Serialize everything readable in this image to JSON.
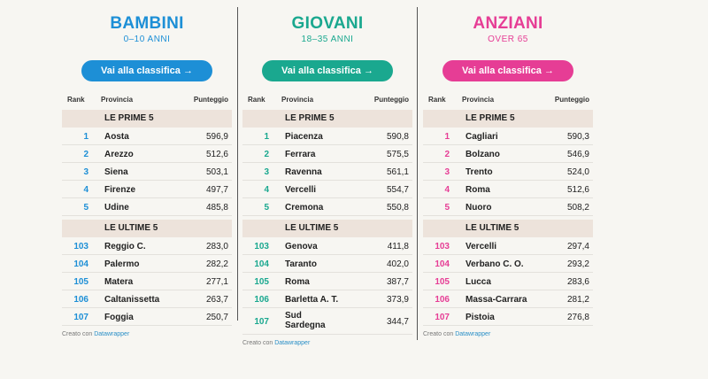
{
  "columns_header": {
    "rank": "Rank",
    "province": "Provincia",
    "score": "Punteggio"
  },
  "credit": {
    "prefix": "Creato con",
    "link": "Datawrapper"
  },
  "panels": [
    {
      "title": "BAMBINI",
      "subtitle": "0–10 ANNI",
      "accent": "#1d8fd6",
      "button_label": "Vai alla classifica →",
      "top_label": "LE PRIME 5",
      "bottom_label": "LE ULTIME 5",
      "top": [
        {
          "rank": "1",
          "province": "Aosta",
          "score": "596,9"
        },
        {
          "rank": "2",
          "province": "Arezzo",
          "score": "512,6"
        },
        {
          "rank": "3",
          "province": "Siena",
          "score": "503,1"
        },
        {
          "rank": "4",
          "province": "Firenze",
          "score": "497,7"
        },
        {
          "rank": "5",
          "province": "Udine",
          "score": "485,8"
        }
      ],
      "bottom": [
        {
          "rank": "103",
          "province": "Reggio C.",
          "score": "283,0"
        },
        {
          "rank": "104",
          "province": "Palermo",
          "score": "282,2"
        },
        {
          "rank": "105",
          "province": "Matera",
          "score": "277,1"
        },
        {
          "rank": "106",
          "province": "Caltanissetta",
          "score": "263,7"
        },
        {
          "rank": "107",
          "province": "Foggia",
          "score": "250,7"
        }
      ]
    },
    {
      "title": "GIOVANI",
      "subtitle": "18–35 ANNI",
      "accent": "#1aa88f",
      "button_label": "Vai alla classifica →",
      "top_label": "LE PRIME 5",
      "bottom_label": "LE ULTIME 5",
      "top": [
        {
          "rank": "1",
          "province": "Piacenza",
          "score": "590,8"
        },
        {
          "rank": "2",
          "province": "Ferrara",
          "score": "575,5"
        },
        {
          "rank": "3",
          "province": "Ravenna",
          "score": "561,1"
        },
        {
          "rank": "4",
          "province": "Vercelli",
          "score": "554,7"
        },
        {
          "rank": "5",
          "province": "Cremona",
          "score": "550,8"
        }
      ],
      "bottom": [
        {
          "rank": "103",
          "province": "Genova",
          "score": "411,8"
        },
        {
          "rank": "104",
          "province": "Taranto",
          "score": "402,0"
        },
        {
          "rank": "105",
          "province": "Roma",
          "score": "387,7"
        },
        {
          "rank": "106",
          "province": "Barletta A. T.",
          "score": "373,9"
        },
        {
          "rank": "107",
          "province": "Sud Sardegna",
          "score": "344,7"
        }
      ]
    },
    {
      "title": "ANZIANI",
      "subtitle": "OVER 65",
      "accent": "#e63d95",
      "button_label": "Vai alla classifica →",
      "top_label": "LE PRIME 5",
      "bottom_label": "LE ULTIME 5",
      "top": [
        {
          "rank": "1",
          "province": "Cagliari",
          "score": "590,3"
        },
        {
          "rank": "2",
          "province": "Bolzano",
          "score": "546,9"
        },
        {
          "rank": "3",
          "province": "Trento",
          "score": "524,0"
        },
        {
          "rank": "4",
          "province": "Roma",
          "score": "512,6"
        },
        {
          "rank": "5",
          "province": "Nuoro",
          "score": "508,2"
        }
      ],
      "bottom": [
        {
          "rank": "103",
          "province": "Vercelli",
          "score": "297,4"
        },
        {
          "rank": "104",
          "province": "Verbano C. O.",
          "score": "293,2"
        },
        {
          "rank": "105",
          "province": "Lucca",
          "score": "283,6"
        },
        {
          "rank": "106",
          "province": "Massa-Carrara",
          "score": "281,2"
        },
        {
          "rank": "107",
          "province": "Pistoia",
          "score": "276,8"
        }
      ]
    }
  ]
}
